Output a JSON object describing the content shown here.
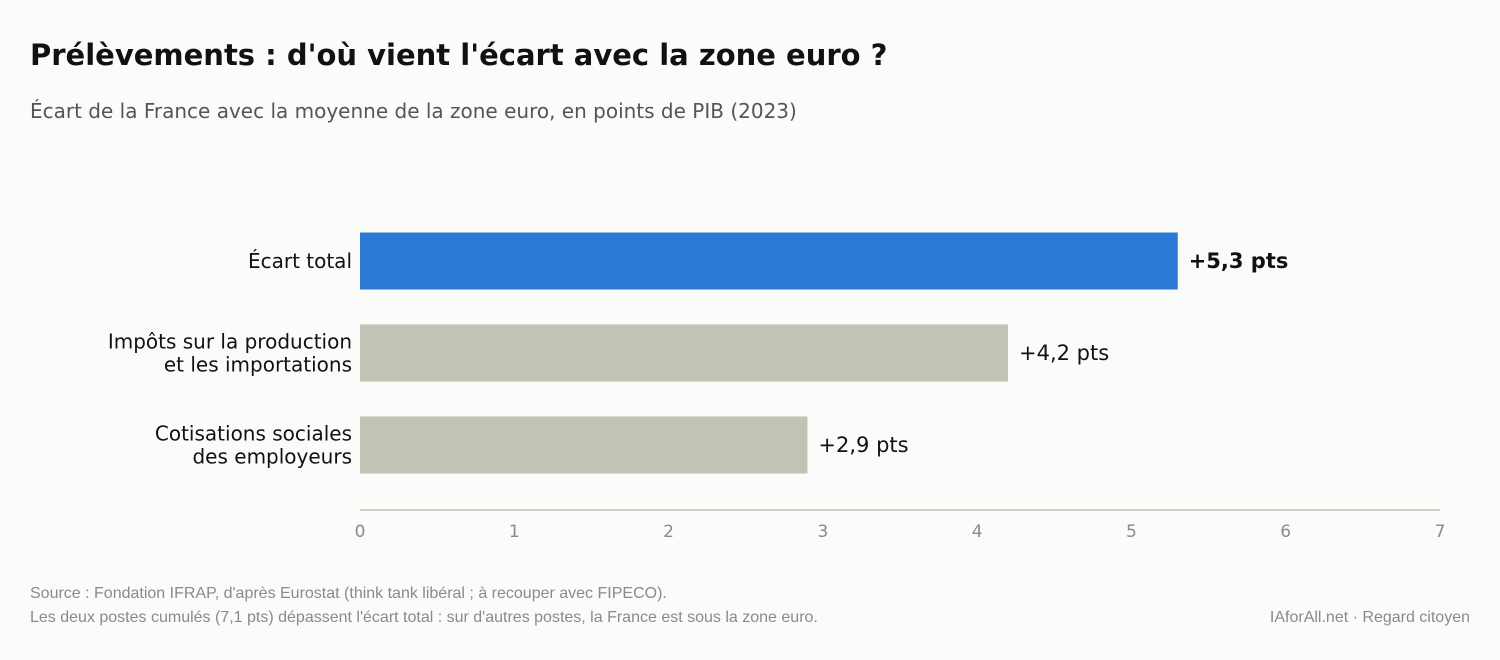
{
  "header": {
    "title": "Prélèvements : d'où vient l'écart avec la zone euro ?",
    "subtitle": "Écart de la France avec la moyenne de la zone euro, en points de PIB (2023)"
  },
  "footer": {
    "source": "Source : Fondation IFRAP, d'après Eurostat (think tank libéral ; à recouper avec FIPECO).",
    "note": "Les deux postes cumulés (7,1 pts) dépassent l'écart total : sur d'autres postes, la France est sous la zone euro.",
    "brand": "IAforAll.net · Regard citoyen"
  },
  "colors": {
    "highlight": "#2a7ad5",
    "neutral": "#c2c2b5",
    "axis": "#c2c2b5",
    "tick_text": "#8a8a8a"
  },
  "chart_data": {
    "type": "bar",
    "orientation": "horizontal",
    "categories": [
      [
        "Écart total"
      ],
      [
        "Impôts sur la production",
        "et les importations"
      ],
      [
        "Cotisations sociales",
        "des employeurs"
      ]
    ],
    "values": [
      5.3,
      4.2,
      2.9
    ],
    "value_labels": [
      "+5,3 pts",
      "+4,2 pts",
      "+2,9 pts"
    ],
    "highlight_index": 0,
    "xlim": [
      0,
      7
    ],
    "xticks": [
      0,
      1,
      2,
      3,
      4,
      5,
      6,
      7
    ],
    "grid": false
  }
}
